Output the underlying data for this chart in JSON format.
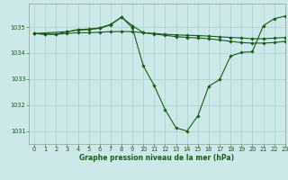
{
  "title": "Graphe pression niveau de la mer (hPa)",
  "bg_color": "#cce8e8",
  "grid_color": "#a8d0d0",
  "line_color": "#1a5c1a",
  "xlim": [
    -0.5,
    23
  ],
  "ylim": [
    1030.5,
    1035.9
  ],
  "xticks": [
    0,
    1,
    2,
    3,
    4,
    5,
    6,
    7,
    8,
    9,
    10,
    11,
    12,
    13,
    14,
    15,
    16,
    17,
    18,
    19,
    20,
    21,
    22,
    23
  ],
  "yticks": [
    1031,
    1032,
    1033,
    1034,
    1035
  ],
  "curve_flat_x": [
    0,
    1,
    2,
    3,
    4,
    5,
    6,
    7,
    8,
    9,
    10,
    11,
    12,
    13,
    14,
    15,
    16,
    17,
    18,
    19,
    20,
    21,
    22,
    23
  ],
  "curve_flat_y": [
    1034.75,
    1034.72,
    1034.72,
    1034.75,
    1034.78,
    1034.78,
    1034.8,
    1034.82,
    1034.83,
    1034.82,
    1034.78,
    1034.75,
    1034.72,
    1034.7,
    1034.68,
    1034.67,
    1034.65,
    1034.62,
    1034.6,
    1034.58,
    1034.55,
    1034.55,
    1034.57,
    1034.6
  ],
  "curve_main_x": [
    0,
    1,
    2,
    3,
    4,
    5,
    6,
    7,
    8,
    9,
    10,
    11,
    12,
    13,
    14,
    15,
    16,
    17,
    18,
    19,
    20,
    21,
    22,
    23
  ],
  "curve_main_y": [
    1034.75,
    1034.72,
    1034.72,
    1034.82,
    1034.88,
    1034.9,
    1034.95,
    1035.08,
    1035.38,
    1034.97,
    1033.5,
    1032.75,
    1031.82,
    1031.12,
    1031.0,
    1031.58,
    1032.72,
    1032.98,
    1033.88,
    1034.02,
    1034.05,
    1035.05,
    1035.32,
    1035.42
  ],
  "curve_peak_x": [
    0,
    3,
    4,
    5,
    6,
    7,
    8,
    9,
    10,
    11,
    12,
    13,
    14,
    15,
    16,
    17,
    18,
    19,
    20,
    21,
    22,
    23
  ],
  "curve_peak_y": [
    1034.75,
    1034.82,
    1034.9,
    1034.92,
    1034.97,
    1035.1,
    1035.38,
    1035.05,
    1034.78,
    1034.73,
    1034.68,
    1034.63,
    1034.6,
    1034.58,
    1034.55,
    1034.5,
    1034.45,
    1034.4,
    1034.38,
    1034.38,
    1034.4,
    1034.45
  ],
  "xlabel_fontsize": 5.5,
  "tick_fontsize": 4.8
}
